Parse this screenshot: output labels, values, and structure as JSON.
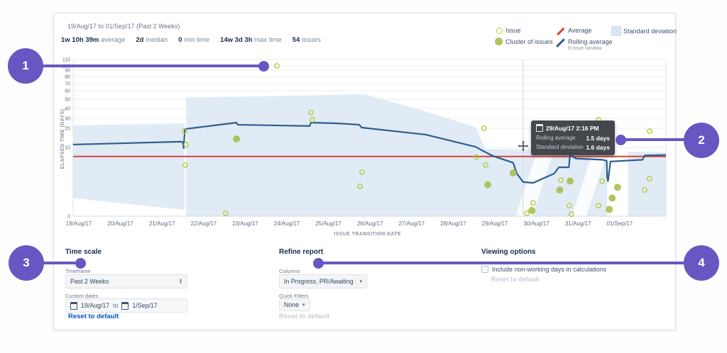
{
  "header": {
    "date_range": "19/Aug/17 to 01/Sep/17 (Past 2 Weeks)",
    "stats": [
      {
        "value": "1w 10h 39m",
        "label": "average"
      },
      {
        "value": "2d",
        "label": "median"
      },
      {
        "value": "0",
        "label": "min time"
      },
      {
        "value": "14w 3d 3h",
        "label": "max time"
      },
      {
        "value": "54",
        "label": "issues"
      }
    ]
  },
  "legend": {
    "issue": "Issue",
    "cluster": "Cluster of issues",
    "average": "Average",
    "rolling_average": "Rolling average",
    "rolling_sub": "9 issue window",
    "std_dev": "Standard deviation"
  },
  "chart_data": {
    "type": "line",
    "xlabel": "ISSUE TRANSITION DATE",
    "ylabel": "ELAPSED TIME (DAYS)",
    "categories": [
      "19/Aug/17",
      "20/Aug/17",
      "21/Aug/17",
      "22/Aug/17",
      "23/Aug/17",
      "24/Aug/17",
      "25/Aug/17",
      "26/Aug/17",
      "27/Aug/17",
      "28/Aug/17",
      "29/Aug/17",
      "30/Aug/17",
      "31/Aug/17",
      "01/Sep/17"
    ],
    "yticks": [
      0,
      10,
      20,
      30,
      40,
      50,
      60,
      70,
      80,
      90,
      100,
      110
    ],
    "ylim": [
      0,
      110
    ],
    "average_days": 7.44,
    "crosshair_day": 10.68,
    "series": [
      {
        "name": "Rolling average",
        "type": "line",
        "points": [
          [
            -0.14,
            11.5
          ],
          [
            2.45,
            13.0
          ],
          [
            2.5,
            12.8
          ],
          [
            2.52,
            9.8
          ],
          [
            2.55,
            19.6
          ],
          [
            3.79,
            25.7
          ],
          [
            3.82,
            23.6
          ],
          [
            5.55,
            22.3
          ],
          [
            5.58,
            25.7
          ],
          [
            6.2,
            25.0
          ],
          [
            6.74,
            23.6
          ],
          [
            6.8,
            20.7
          ],
          [
            8.34,
            16.7
          ],
          [
            9.54,
            10.3
          ],
          [
            9.7,
            8.9
          ],
          [
            9.93,
            7.6
          ],
          [
            10.05,
            7.3
          ],
          [
            10.44,
            6.4
          ],
          [
            10.53,
            4.8
          ],
          [
            10.68,
            3.7
          ],
          [
            10.92,
            3.6
          ],
          [
            11.42,
            4.8
          ],
          [
            11.54,
            5.7
          ],
          [
            11.78,
            5.7
          ],
          [
            11.81,
            8.1
          ],
          [
            11.88,
            7.4
          ],
          [
            11.95,
            7.1
          ],
          [
            12.58,
            6.9
          ],
          [
            12.69,
            6.7
          ],
          [
            12.7,
            4.3
          ],
          [
            12.72,
            3.8
          ],
          [
            12.78,
            6.6
          ],
          [
            13.55,
            6.9
          ],
          [
            13.6,
            7.6
          ],
          [
            14.11,
            7.7
          ]
        ]
      },
      {
        "name": "Issue",
        "type": "scatter",
        "points": [
          [
            4.76,
            100
          ],
          [
            2.54,
            18.5
          ],
          [
            2.58,
            11.5
          ],
          [
            2.56,
            6.0
          ],
          [
            3.53,
            0.3
          ],
          [
            5.58,
            36
          ],
          [
            5.61,
            28.6
          ],
          [
            6.81,
            5.0
          ],
          [
            6.76,
            3.2
          ],
          [
            9.74,
            20
          ],
          [
            9.56,
            7.3
          ],
          [
            9.78,
            6.0
          ],
          [
            12.49,
            28.6
          ],
          [
            13.72,
            18.5
          ],
          [
            10.77,
            0.3
          ],
          [
            10.92,
            1.4
          ],
          [
            11.79,
            1.1
          ],
          [
            11.84,
            0.2
          ],
          [
            12.58,
            3.8
          ],
          [
            12.49,
            1.1
          ],
          [
            11.59,
            3.9
          ],
          [
            13.72,
            4.1
          ],
          [
            13.6,
            2.8
          ]
        ]
      },
      {
        "name": "Cluster of issues",
        "type": "scatter-filled",
        "points": [
          [
            3.79,
            14.4
          ],
          [
            9.83,
            3.4
          ],
          [
            10.44,
            4.9
          ],
          [
            10.89,
            0.6
          ],
          [
            11.81,
            3.8
          ],
          [
            11.56,
            2.8
          ],
          [
            12.95,
            3.1
          ],
          [
            12.82,
            1.9
          ],
          [
            12.75,
            0.7
          ]
        ]
      }
    ],
    "std_band_segments": [
      [
        [
          -0.14,
          1.9
        ],
        [
          -0.14,
          22.9
        ],
        [
          2.54,
          25.0
        ],
        [
          2.54,
          0.65
        ]
      ],
      [
        [
          2.58,
          0
        ],
        [
          2.58,
          52
        ],
        [
          5.0,
          54
        ],
        [
          6.86,
          56
        ],
        [
          8.34,
          37
        ],
        [
          9.54,
          21
        ],
        [
          9.76,
          10
        ],
        [
          9.76,
          0
        ]
      ],
      [
        [
          9.76,
          0
        ],
        [
          9.76,
          9.5
        ],
        [
          12.7,
          9.2
        ],
        [
          12.7,
          0
        ]
      ],
      [
        [
          13.2,
          0
        ],
        [
          13.2,
          8.5
        ],
        [
          14.11,
          8.3
        ],
        [
          14.11,
          0
        ]
      ]
    ],
    "band_gaps": [
      [
        [
          10.5,
          0
        ],
        [
          10.9,
          0
        ],
        [
          11.4,
          8.2
        ],
        [
          11.0,
          8.2
        ]
      ],
      [
        [
          11.85,
          0
        ],
        [
          12.2,
          0
        ],
        [
          12.7,
          8.2
        ],
        [
          12.35,
          8.2
        ]
      ]
    ],
    "colors": {
      "rolling": "#2d5f8f",
      "average": "#d0443c",
      "issue": "#b9cb3b",
      "cluster": "#a7bf4f",
      "band": "#dae6f4",
      "callout": "#6757c2"
    }
  },
  "tooltip": {
    "title": "29/Aug/17 2:16 PM",
    "rows": [
      {
        "label": "Rolling average",
        "value": "1.5 days"
      },
      {
        "label": "Standard deviation",
        "value": "1.6 days"
      }
    ]
  },
  "callouts": [
    {
      "n": "1"
    },
    {
      "n": "2"
    },
    {
      "n": "3"
    },
    {
      "n": "4"
    }
  ],
  "controls": {
    "time_scale": {
      "heading": "Time scale",
      "timeframe_label": "Timeframe",
      "timeframe_value": "Past 2 Weeks",
      "custom_dates_label": "Custom dates",
      "date_from": "19/Aug/17",
      "to_word": "to",
      "date_to": "1/Sep/17",
      "reset": "Reset to default"
    },
    "refine": {
      "heading": "Refine report",
      "columns_label": "Columns",
      "columns_value": "In Progress, PR/Awaiting M...",
      "quick_filters_label": "Quick Filters",
      "quick_filters_value": "None",
      "reset": "Reset to default"
    },
    "viewing": {
      "heading": "Viewing options",
      "checkbox_label": "Include non-working days in calculations",
      "reset": "Reset to default"
    }
  }
}
